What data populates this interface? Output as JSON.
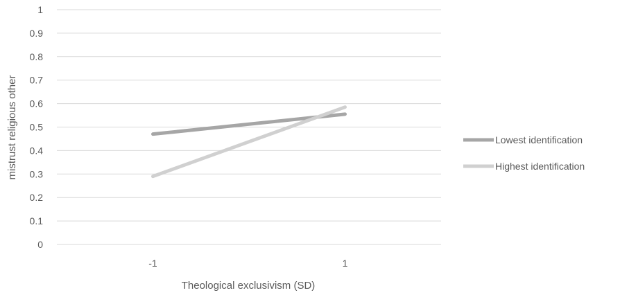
{
  "chart_data": {
    "type": "line",
    "xlabel": "Theological exclusivism (SD)",
    "ylabel": "mistrust religious other",
    "categories": [
      "-1",
      "1"
    ],
    "ylim": [
      0,
      1
    ],
    "yticks": [
      "0",
      "0.1",
      "0.2",
      "0.3",
      "0.4",
      "0.5",
      "0.6",
      "0.7",
      "0.8",
      "0.9",
      "1"
    ],
    "grid": true,
    "legend_position": "right",
    "series": [
      {
        "name": "Lowest identification",
        "values": [
          0.47,
          0.555
        ],
        "color": "#a6a6a6"
      },
      {
        "name": "Highest identification",
        "values": [
          0.29,
          0.585
        ],
        "color": "#d0d0d0"
      }
    ]
  }
}
